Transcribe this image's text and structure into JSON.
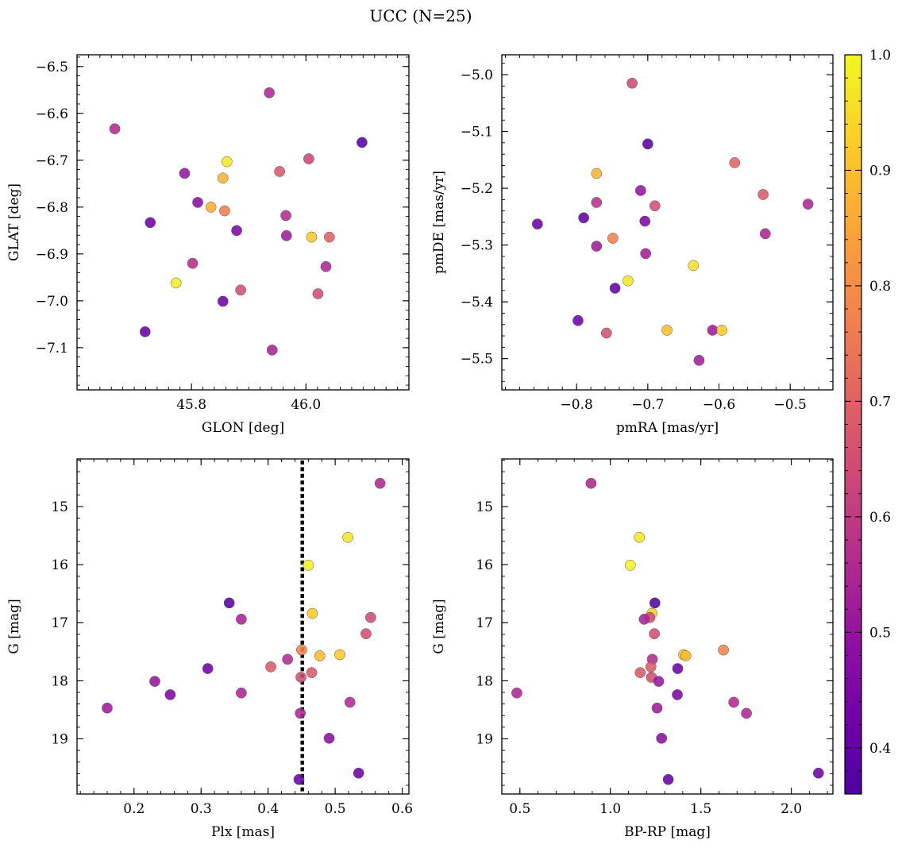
{
  "figure": {
    "title": "UCC (N=25)"
  },
  "colorbar": {
    "range": [
      0.36,
      1.0
    ],
    "ticks": [
      0.4,
      0.5,
      0.6,
      0.7,
      0.8,
      0.9,
      1.0
    ],
    "tick_labels": [
      "0.4",
      "0.5",
      "0.6",
      "0.7",
      "0.8",
      "0.9",
      "1.0"
    ],
    "colormap": "plasma"
  },
  "chart_data": [
    {
      "type": "scatter",
      "id": "glon-glat",
      "xlabel": "GLON [deg]",
      "ylabel": "GLAT [deg]",
      "xlim": [
        45.6,
        46.18
      ],
      "ylim": [
        -7.19,
        -6.475
      ],
      "y_inverted": false,
      "xticks": [
        45.8,
        46.0
      ],
      "xtick_labels": [
        "45.8",
        "46.0"
      ],
      "yticks": [
        -6.5,
        -6.6,
        -6.7,
        -6.8,
        -6.9,
        -7.0,
        -7.1
      ],
      "ytick_labels": [
        "−6.5",
        "−6.6",
        "−6.7",
        "−6.8",
        "−6.9",
        "−7.0",
        "−7.1"
      ],
      "points": [
        {
          "x": 45.666,
          "y": -6.633,
          "c": 0.56
        },
        {
          "x": 45.936,
          "y": -6.556,
          "c": 0.55
        },
        {
          "x": 46.098,
          "y": -6.662,
          "c": 0.38
        },
        {
          "x": 45.788,
          "y": -6.728,
          "c": 0.5
        },
        {
          "x": 45.862,
          "y": -6.703,
          "c": 0.97
        },
        {
          "x": 45.855,
          "y": -6.738,
          "c": 0.88
        },
        {
          "x": 45.954,
          "y": -6.724,
          "c": 0.68
        },
        {
          "x": 46.005,
          "y": -6.697,
          "c": 0.63
        },
        {
          "x": 45.811,
          "y": -6.79,
          "c": 0.48
        },
        {
          "x": 45.834,
          "y": -6.8,
          "c": 0.87
        },
        {
          "x": 45.858,
          "y": -6.808,
          "c": 0.76
        },
        {
          "x": 45.728,
          "y": -6.833,
          "c": 0.42
        },
        {
          "x": 45.879,
          "y": -6.85,
          "c": 0.45
        },
        {
          "x": 45.965,
          "y": -6.818,
          "c": 0.56
        },
        {
          "x": 45.966,
          "y": -6.861,
          "c": 0.52
        },
        {
          "x": 46.01,
          "y": -6.864,
          "c": 0.92
        },
        {
          "x": 46.041,
          "y": -6.864,
          "c": 0.7
        },
        {
          "x": 45.802,
          "y": -6.92,
          "c": 0.57
        },
        {
          "x": 46.035,
          "y": -6.927,
          "c": 0.55
        },
        {
          "x": 45.773,
          "y": -6.962,
          "c": 0.98
        },
        {
          "x": 45.886,
          "y": -6.977,
          "c": 0.65
        },
        {
          "x": 46.021,
          "y": -6.985,
          "c": 0.65
        },
        {
          "x": 45.855,
          "y": -7.001,
          "c": 0.42
        },
        {
          "x": 45.719,
          "y": -7.066,
          "c": 0.4
        },
        {
          "x": 45.941,
          "y": -7.105,
          "c": 0.54
        }
      ]
    },
    {
      "type": "scatter",
      "id": "pmra-pmde",
      "xlabel": "pmRA [mas/yr]",
      "ylabel": "pmDE [mas/yr]",
      "xlim": [
        -0.905,
        -0.44
      ],
      "ylim": [
        -5.555,
        -4.965
      ],
      "y_inverted": false,
      "xticks": [
        -0.8,
        -0.7,
        -0.6,
        -0.5
      ],
      "xtick_labels": [
        "−0.8",
        "−0.7",
        "−0.6",
        "−0.5"
      ],
      "yticks": [
        -5.0,
        -5.1,
        -5.2,
        -5.3,
        -5.4,
        -5.5
      ],
      "ytick_labels": [
        "−5.0",
        "−5.1",
        "−5.2",
        "−5.3",
        "−5.4",
        "−5.5"
      ],
      "points": [
        {
          "x": -0.722,
          "y": -5.015,
          "c": 0.64
        },
        {
          "x": -0.7,
          "y": -5.122,
          "c": 0.38
        },
        {
          "x": -0.578,
          "y": -5.155,
          "c": 0.7
        },
        {
          "x": -0.772,
          "y": -5.174,
          "c": 0.88
        },
        {
          "x": -0.71,
          "y": -5.204,
          "c": 0.5
        },
        {
          "x": -0.538,
          "y": -5.211,
          "c": 0.68
        },
        {
          "x": -0.772,
          "y": -5.225,
          "c": 0.58
        },
        {
          "x": -0.69,
          "y": -5.231,
          "c": 0.65
        },
        {
          "x": -0.475,
          "y": -5.228,
          "c": 0.55
        },
        {
          "x": -0.855,
          "y": -5.263,
          "c": 0.42
        },
        {
          "x": -0.79,
          "y": -5.252,
          "c": 0.4
        },
        {
          "x": -0.704,
          "y": -5.258,
          "c": 0.45
        },
        {
          "x": -0.535,
          "y": -5.28,
          "c": 0.55
        },
        {
          "x": -0.749,
          "y": -5.288,
          "c": 0.77
        },
        {
          "x": -0.772,
          "y": -5.302,
          "c": 0.52
        },
        {
          "x": -0.703,
          "y": -5.315,
          "c": 0.53
        },
        {
          "x": -0.636,
          "y": -5.336,
          "c": 0.96
        },
        {
          "x": -0.728,
          "y": -5.363,
          "c": 0.97
        },
        {
          "x": -0.746,
          "y": -5.376,
          "c": 0.4
        },
        {
          "x": -0.798,
          "y": -5.433,
          "c": 0.42
        },
        {
          "x": -0.673,
          "y": -5.45,
          "c": 0.9
        },
        {
          "x": -0.609,
          "y": -5.45,
          "c": 0.52
        },
        {
          "x": -0.596,
          "y": -5.45,
          "c": 0.92
        },
        {
          "x": -0.758,
          "y": -5.455,
          "c": 0.66
        },
        {
          "x": -0.628,
          "y": -5.503,
          "c": 0.53
        }
      ]
    },
    {
      "type": "scatter",
      "id": "plx-g",
      "xlabel": "Plx [mas]",
      "ylabel": "G [mag]",
      "xlim": [
        0.115,
        0.61
      ],
      "ylim": [
        14.18,
        19.95
      ],
      "y_inverted": true,
      "xticks": [
        0.2,
        0.3,
        0.4,
        0.5,
        0.6
      ],
      "xtick_labels": [
        "0.2",
        "0.3",
        "0.4",
        "0.5",
        "0.6"
      ],
      "yticks": [
        15,
        16,
        17,
        18,
        19
      ],
      "ytick_labels": [
        "15",
        "16",
        "17",
        "18",
        "19"
      ],
      "vline": {
        "x": 0.451,
        "style": "dotted"
      },
      "points": [
        {
          "x": 0.567,
          "y": 14.6,
          "c": 0.55
        },
        {
          "x": 0.519,
          "y": 15.53,
          "c": 0.97
        },
        {
          "x": 0.46,
          "y": 16.01,
          "c": 0.99
        },
        {
          "x": 0.342,
          "y": 16.66,
          "c": 0.38
        },
        {
          "x": 0.466,
          "y": 16.84,
          "c": 0.92
        },
        {
          "x": 0.553,
          "y": 16.91,
          "c": 0.64
        },
        {
          "x": 0.36,
          "y": 16.94,
          "c": 0.54
        },
        {
          "x": 0.546,
          "y": 17.19,
          "c": 0.65
        },
        {
          "x": 0.45,
          "y": 17.47,
          "c": 0.78
        },
        {
          "x": 0.507,
          "y": 17.55,
          "c": 0.91
        },
        {
          "x": 0.477,
          "y": 17.57,
          "c": 0.89
        },
        {
          "x": 0.429,
          "y": 17.63,
          "c": 0.56
        },
        {
          "x": 0.404,
          "y": 17.76,
          "c": 0.68
        },
        {
          "x": 0.31,
          "y": 17.79,
          "c": 0.42
        },
        {
          "x": 0.465,
          "y": 17.86,
          "c": 0.68
        },
        {
          "x": 0.449,
          "y": 17.94,
          "c": 0.65
        },
        {
          "x": 0.231,
          "y": 18.01,
          "c": 0.5
        },
        {
          "x": 0.36,
          "y": 18.21,
          "c": 0.55
        },
        {
          "x": 0.254,
          "y": 18.24,
          "c": 0.45
        },
        {
          "x": 0.522,
          "y": 18.37,
          "c": 0.56
        },
        {
          "x": 0.16,
          "y": 18.47,
          "c": 0.52
        },
        {
          "x": 0.448,
          "y": 18.56,
          "c": 0.55
        },
        {
          "x": 0.491,
          "y": 18.99,
          "c": 0.48
        },
        {
          "x": 0.535,
          "y": 19.59,
          "c": 0.42
        },
        {
          "x": 0.446,
          "y": 19.7,
          "c": 0.4
        }
      ]
    },
    {
      "type": "scatter",
      "id": "bprp-g",
      "xlabel": "BP-RP [mag]",
      "ylabel": "G [mag]",
      "xlim": [
        0.4,
        2.23
      ],
      "ylim": [
        14.18,
        19.95
      ],
      "y_inverted": true,
      "xticks": [
        0.5,
        1.0,
        1.5,
        2.0
      ],
      "xtick_labels": [
        "0.5",
        "1.0",
        "1.5",
        "2.0"
      ],
      "yticks": [
        15,
        16,
        17,
        18,
        19
      ],
      "ytick_labels": [
        "15",
        "16",
        "17",
        "18",
        "19"
      ],
      "points": [
        {
          "x": 0.893,
          "y": 14.6,
          "c": 0.55
        },
        {
          "x": 1.16,
          "y": 15.53,
          "c": 0.97
        },
        {
          "x": 1.11,
          "y": 16.01,
          "c": 0.99
        },
        {
          "x": 1.246,
          "y": 16.66,
          "c": 0.38
        },
        {
          "x": 1.23,
          "y": 16.84,
          "c": 0.92
        },
        {
          "x": 1.218,
          "y": 16.91,
          "c": 0.64
        },
        {
          "x": 1.187,
          "y": 16.94,
          "c": 0.54
        },
        {
          "x": 1.243,
          "y": 17.19,
          "c": 0.65
        },
        {
          "x": 1.625,
          "y": 17.47,
          "c": 0.78
        },
        {
          "x": 1.405,
          "y": 17.55,
          "c": 0.91
        },
        {
          "x": 1.417,
          "y": 17.57,
          "c": 0.89
        },
        {
          "x": 1.232,
          "y": 17.63,
          "c": 0.56
        },
        {
          "x": 1.224,
          "y": 17.76,
          "c": 0.68
        },
        {
          "x": 1.372,
          "y": 17.79,
          "c": 0.42
        },
        {
          "x": 1.165,
          "y": 17.86,
          "c": 0.68
        },
        {
          "x": 1.227,
          "y": 17.94,
          "c": 0.65
        },
        {
          "x": 1.267,
          "y": 18.01,
          "c": 0.5
        },
        {
          "x": 0.483,
          "y": 18.21,
          "c": 0.55
        },
        {
          "x": 1.37,
          "y": 18.24,
          "c": 0.45
        },
        {
          "x": 1.682,
          "y": 18.37,
          "c": 0.56
        },
        {
          "x": 1.258,
          "y": 18.47,
          "c": 0.52
        },
        {
          "x": 1.752,
          "y": 18.56,
          "c": 0.55
        },
        {
          "x": 1.283,
          "y": 18.99,
          "c": 0.48
        },
        {
          "x": 2.15,
          "y": 19.59,
          "c": 0.42
        },
        {
          "x": 1.32,
          "y": 19.7,
          "c": 0.4
        }
      ]
    }
  ]
}
